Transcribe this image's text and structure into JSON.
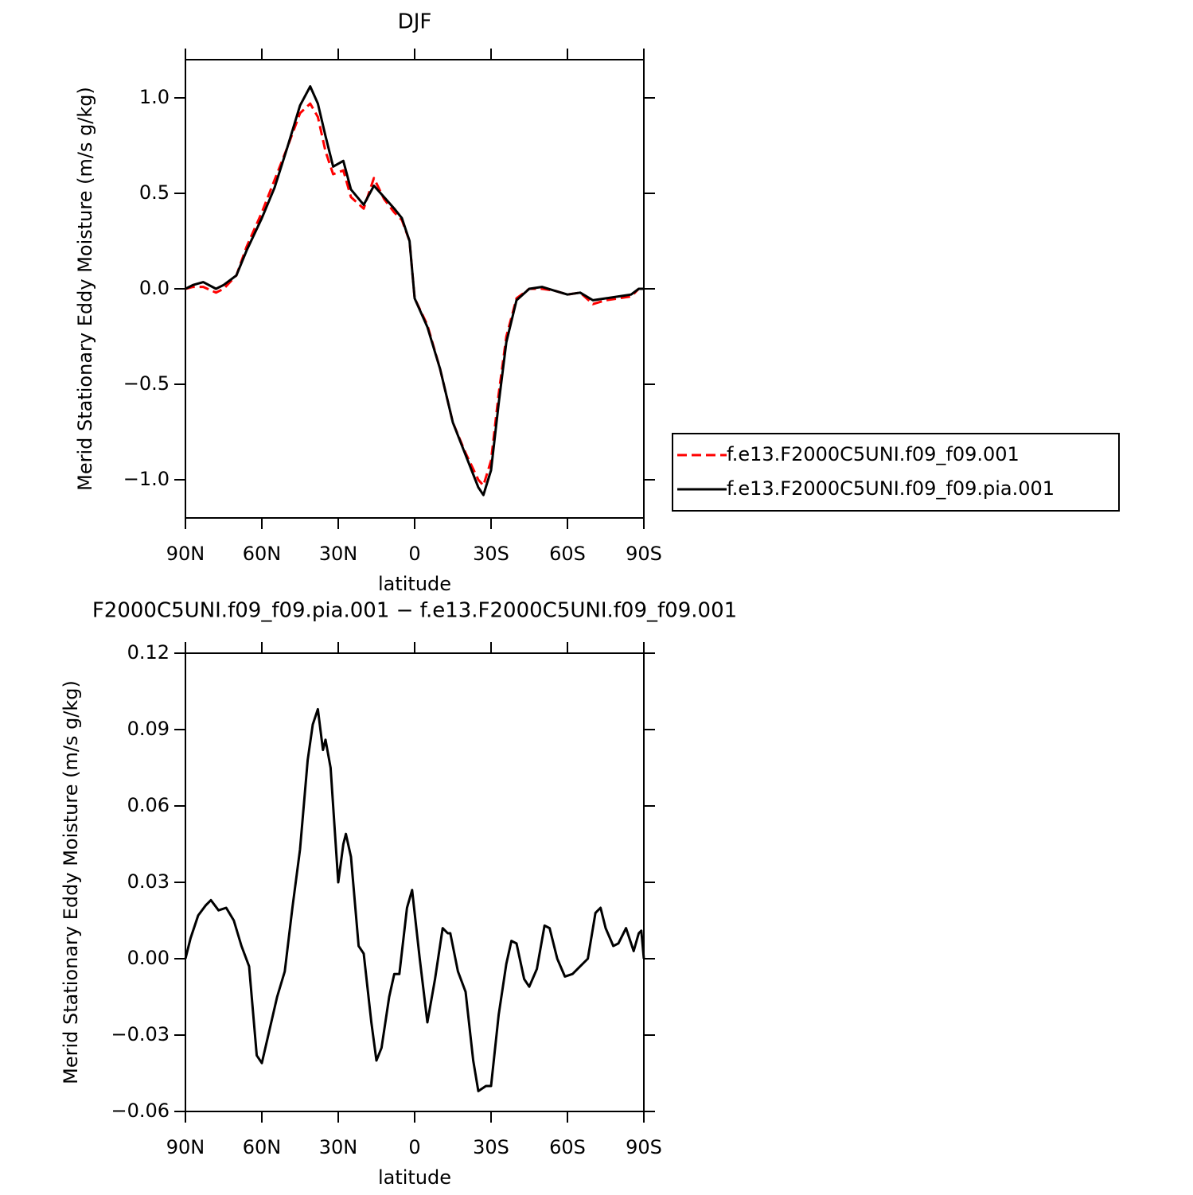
{
  "chart_data": [
    {
      "type": "line",
      "title": "DJF",
      "xlabel": "latitude",
      "ylabel": "Merid Stationary Eddy Moisture (m/s g/kg)",
      "xlim": [
        90,
        -90
      ],
      "xticks": [
        {
          "value": 90,
          "label": "90N"
        },
        {
          "value": 60,
          "label": "60N"
        },
        {
          "value": 30,
          "label": "30N"
        },
        0,
        {
          "value": -30,
          "label": "30S"
        },
        {
          "value": -60,
          "label": "60S"
        },
        {
          "value": -90,
          "label": "90S"
        }
      ],
      "ylim": [
        -1.2,
        1.2
      ],
      "yticks": [
        {
          "value": -1.0,
          "label": "−1.0"
        },
        {
          "value": -0.5,
          "label": "−0.5"
        },
        {
          "value": 0,
          "label": "0.0"
        },
        {
          "value": 0.5,
          "label": "0.5"
        },
        {
          "value": 1.0,
          "label": "1.0"
        }
      ],
      "legend": "right",
      "x": [
        90,
        87,
        83,
        78,
        75,
        70,
        66,
        60,
        55,
        50,
        45,
        41,
        38,
        35,
        32,
        28,
        25,
        20,
        16,
        12,
        8,
        5,
        2,
        0,
        -5,
        -10,
        -15,
        -20,
        -25,
        -27,
        -30,
        -33,
        -36,
        -40,
        -45,
        -50,
        -55,
        -60,
        -65,
        -70,
        -75,
        -80,
        -85,
        -88,
        -90
      ],
      "series": [
        {
          "name": "f.e13.F2000C5UNI.f09_f09.001",
          "color": "#ff0000",
          "linestyle": "dashed",
          "values": [
            0.0,
            0.01,
            0.01,
            -0.02,
            0.0,
            0.07,
            0.22,
            0.4,
            0.57,
            0.74,
            0.92,
            0.97,
            0.9,
            0.72,
            0.6,
            0.62,
            0.48,
            0.42,
            0.58,
            0.47,
            0.4,
            0.36,
            0.25,
            -0.05,
            -0.19,
            -0.42,
            -0.7,
            -0.86,
            -1.0,
            -1.03,
            -0.9,
            -0.55,
            -0.25,
            -0.05,
            0.0,
            0.0,
            -0.01,
            -0.03,
            -0.02,
            -0.08,
            -0.06,
            -0.05,
            -0.04,
            0.0,
            0.0
          ]
        },
        {
          "name": "f.e13.F2000C5UNI.f09_f09.pia.001",
          "color": "#000000",
          "linestyle": "solid",
          "values": [
            0.0,
            0.02,
            0.035,
            0.0,
            0.02,
            0.07,
            0.2,
            0.37,
            0.53,
            0.74,
            0.96,
            1.06,
            0.97,
            0.8,
            0.64,
            0.67,
            0.52,
            0.44,
            0.54,
            0.48,
            0.42,
            0.37,
            0.25,
            -0.05,
            -0.2,
            -0.42,
            -0.7,
            -0.87,
            -1.04,
            -1.08,
            -0.95,
            -0.6,
            -0.28,
            -0.06,
            0.0,
            0.01,
            -0.01,
            -0.03,
            -0.02,
            -0.06,
            -0.05,
            -0.04,
            -0.03,
            0.0,
            0.0
          ]
        }
      ]
    },
    {
      "type": "line",
      "title": "F2000C5UNI.f09_f09.pia.001 − f.e13.F2000C5UNI.f09_f09.001",
      "xlabel": "latitude",
      "ylabel": "Merid Stationary Eddy Moisture (m/s g/kg)",
      "xlim": [
        90,
        -90
      ],
      "xticks": [
        {
          "value": 90,
          "label": "90N"
        },
        {
          "value": 60,
          "label": "60N"
        },
        {
          "value": 30,
          "label": "30N"
        },
        0,
        {
          "value": -30,
          "label": "30S"
        },
        {
          "value": -60,
          "label": "60S"
        },
        {
          "value": -90,
          "label": "90S"
        }
      ],
      "ylim": [
        -0.06,
        0.12
      ],
      "yticks": [
        {
          "value": -0.06,
          "label": "−0.06"
        },
        {
          "value": -0.03,
          "label": "−0.03"
        },
        {
          "value": 0,
          "label": "0.00"
        },
        0.03,
        0.06,
        0.09,
        0.12
      ],
      "x": [
        90,
        88,
        85,
        82,
        80,
        77,
        74,
        71,
        68,
        65,
        62,
        60,
        57,
        54,
        51,
        48,
        45,
        42,
        40,
        38,
        36,
        35,
        33,
        30,
        28,
        27,
        25,
        22,
        20,
        17,
        15,
        13,
        10,
        8,
        6,
        3,
        1,
        -2,
        -5,
        -8,
        -11,
        -13,
        -14,
        -17,
        -20,
        -23,
        -25,
        -28,
        -30,
        -33,
        -36,
        -38,
        -40,
        -43,
        -45,
        -48,
        -51,
        -53,
        -56,
        -59,
        -62,
        -65,
        -68,
        -71,
        -73,
        -75,
        -78,
        -80,
        -83,
        -86,
        -88,
        -89,
        -90
      ],
      "series": [
        {
          "color": "#000000",
          "linestyle": "solid",
          "values": [
            0.0,
            0.008,
            0.017,
            0.021,
            0.023,
            0.019,
            0.02,
            0.015,
            0.005,
            -0.003,
            -0.038,
            -0.041,
            -0.028,
            -0.015,
            -0.005,
            0.02,
            0.043,
            0.078,
            0.092,
            0.098,
            0.082,
            0.086,
            0.075,
            0.03,
            0.045,
            0.049,
            0.04,
            0.005,
            0.002,
            -0.025,
            -0.04,
            -0.035,
            -0.015,
            -0.006,
            -0.006,
            0.02,
            0.027,
            0.0,
            -0.025,
            -0.008,
            0.012,
            0.01,
            0.01,
            -0.005,
            -0.013,
            -0.04,
            -0.052,
            -0.05,
            -0.05,
            -0.022,
            -0.002,
            0.007,
            0.006,
            -0.008,
            -0.011,
            -0.004,
            0.013,
            0.012,
            0.0,
            -0.007,
            -0.006,
            -0.003,
            0.0,
            0.018,
            0.02,
            0.012,
            0.005,
            0.006,
            0.012,
            0.003,
            0.01,
            0.011,
            0.0
          ]
        }
      ]
    }
  ]
}
